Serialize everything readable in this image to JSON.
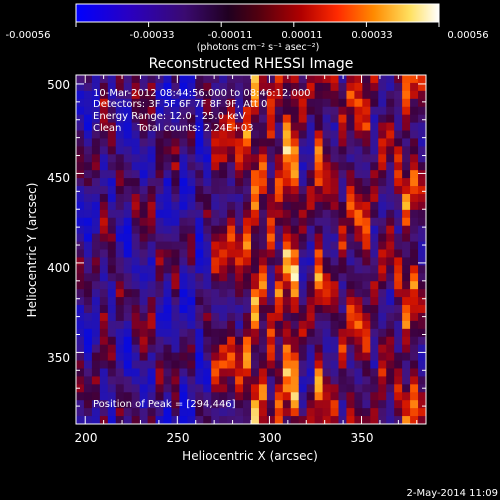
{
  "colorbar": {
    "tick_labels": [
      "-0.00056",
      "-0.00033",
      "-0.00011",
      "0.00011",
      "0.00033",
      "0.00056"
    ],
    "unit": "(photons cm⁻² s⁻¹ asec⁻²)",
    "colors": [
      "#0000ff",
      "#2a00c0",
      "#4a1090",
      "#000000",
      "#7a0020",
      "#c00000",
      "#ff3000",
      "#ff9000",
      "#ffe060",
      "#ffffff"
    ]
  },
  "title": "Reconstructed RHESSI Image",
  "info": {
    "time": "10-Mar-2012 08:44:56.000 to 08:46:12.000",
    "detectors": "Detectors: 3F 5F 6F 7F 8F 9F, Att 0",
    "energy": "Energy Range: 12.0 - 25.0 keV",
    "clean": "Clean     Total counts: 2.24E+03"
  },
  "peak_label": "Position of Peak = [294,446]",
  "axes": {
    "xlabel": "Heliocentric X (arcsec)",
    "ylabel": "Heliocentric Y (arcsec)",
    "xticks": [
      "200",
      "250",
      "300",
      "350"
    ],
    "yticks": [
      "350",
      "400",
      "450",
      "500"
    ],
    "xlim": [
      195,
      385
    ],
    "ylim": [
      310,
      505
    ]
  },
  "footer_date": "2-May-2014 11:09"
}
